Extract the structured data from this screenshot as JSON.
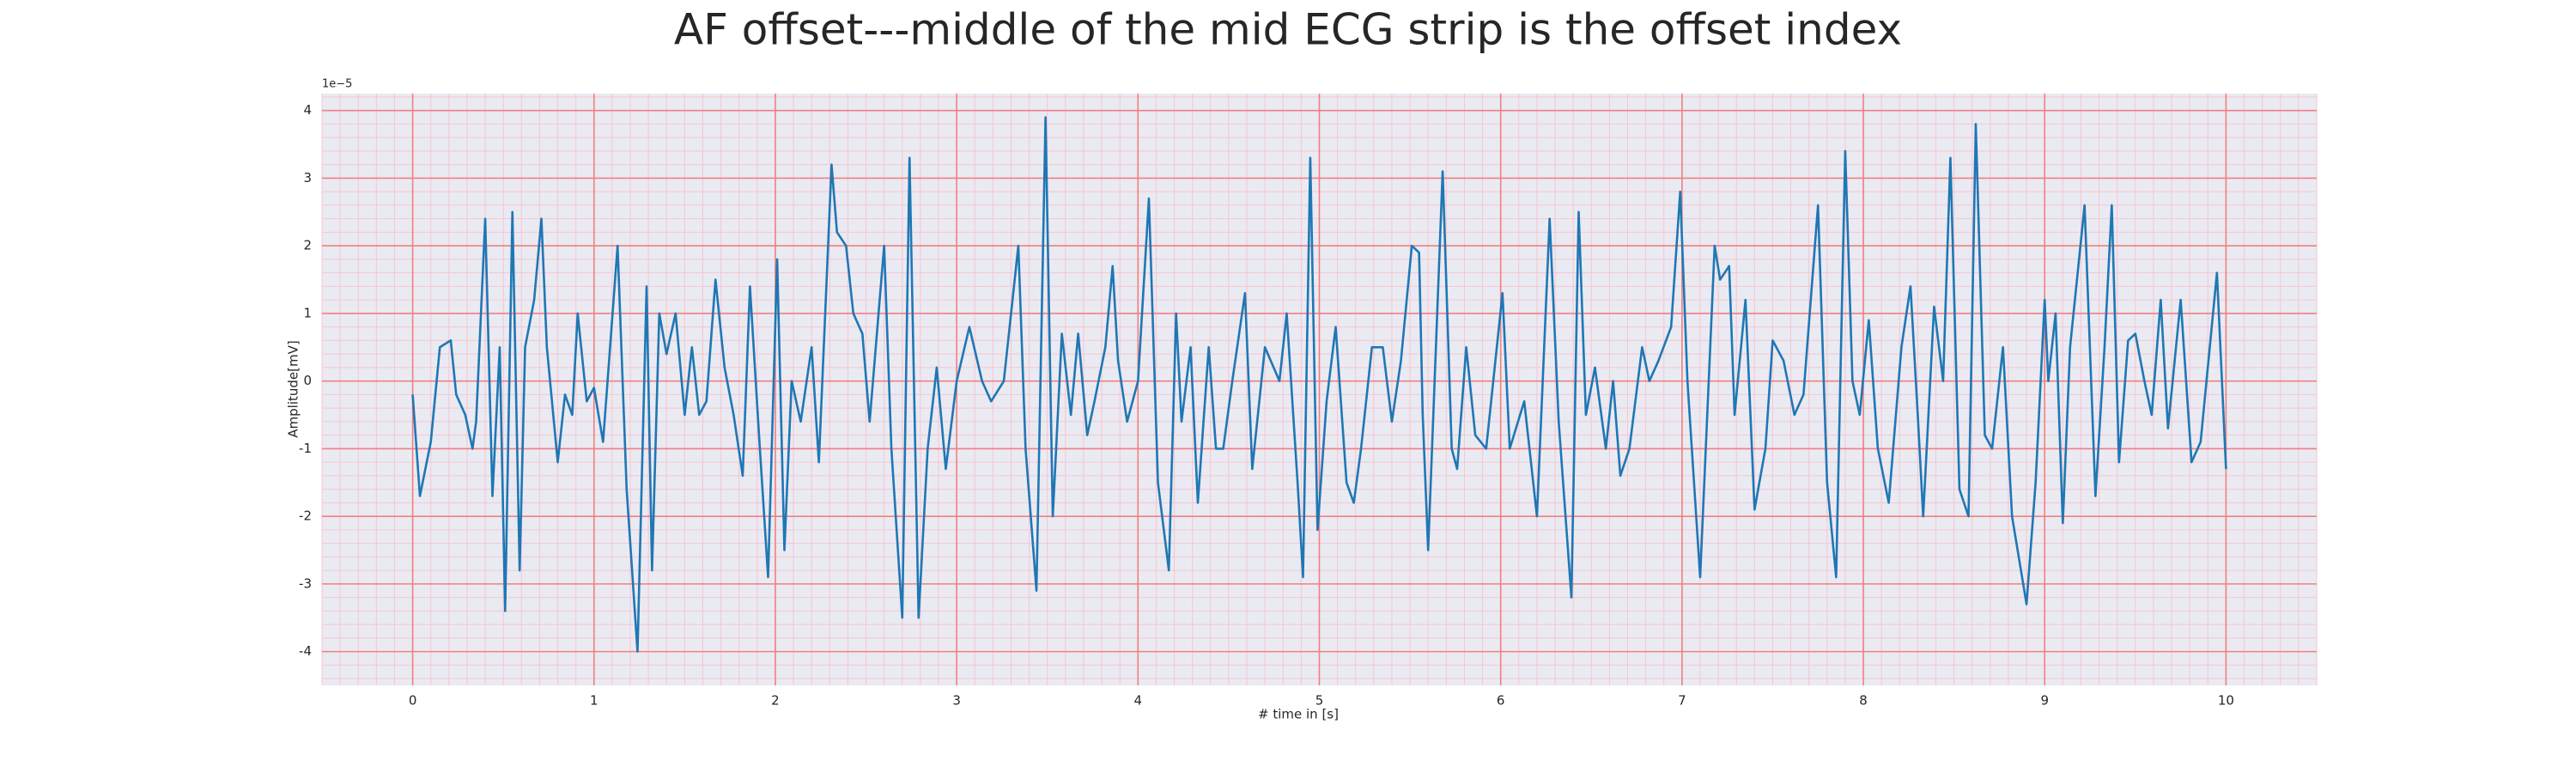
{
  "chart_data": {
    "type": "line",
    "title": "AF offset---middle of the mid ECG strip is the offset index",
    "xlabel": "# time in [s]",
    "ylabel": "Amplitude[mV]",
    "y_offset_label": "1e−5",
    "color": "#1f77b4",
    "grid": true,
    "grid_color": "#f08080",
    "minor_grid_color": "#f5c6d0",
    "background": "#eaeaf2",
    "xlim": [
      -0.5,
      10.5
    ],
    "xticks": [
      0,
      1,
      2,
      3,
      4,
      5,
      6,
      7,
      8,
      9,
      10
    ],
    "ylim": [
      -4.5,
      4.25
    ],
    "yticks": [
      -4,
      -3,
      -2,
      -1,
      0,
      1,
      2,
      3,
      4
    ],
    "x": [
      0,
      0.04,
      0.1,
      0.15,
      0.21,
      0.24,
      0.29,
      0.33,
      0.35,
      0.4,
      0.44,
      0.48,
      0.51,
      0.55,
      0.59,
      0.62,
      0.67,
      0.71,
      0.74,
      0.8,
      0.84,
      0.88,
      0.91,
      0.96,
      1.0,
      1.05,
      1.13,
      1.18,
      1.24,
      1.29,
      1.32,
      1.36,
      1.4,
      1.45,
      1.5,
      1.54,
      1.58,
      1.62,
      1.67,
      1.72,
      1.77,
      1.82,
      1.86,
      1.91,
      1.96,
      2.01,
      2.05,
      2.09,
      2.14,
      2.2,
      2.24,
      2.31,
      2.34,
      2.39,
      2.43,
      2.48,
      2.52,
      2.6,
      2.64,
      2.7,
      2.74,
      2.79,
      2.84,
      2.89,
      2.94,
      3.0,
      3.07,
      3.14,
      3.19,
      3.26,
      3.34,
      3.38,
      3.44,
      3.49,
      3.53,
      3.58,
      3.63,
      3.67,
      3.72,
      3.76,
      3.82,
      3.86,
      3.89,
      3.94,
      4.0,
      4.06,
      4.11,
      4.17,
      4.21,
      4.24,
      4.29,
      4.33,
      4.39,
      4.43,
      4.47,
      4.52,
      4.59,
      4.63,
      4.7,
      4.78,
      4.82,
      4.88,
      4.91,
      4.95,
      4.99,
      5.04,
      5.09,
      5.15,
      5.19,
      5.23,
      5.29,
      5.35,
      5.4,
      5.45,
      5.51,
      5.55,
      5.57,
      5.6,
      5.68,
      5.73,
      5.76,
      5.81,
      5.86,
      5.92,
      6.01,
      6.05,
      6.13,
      6.2,
      6.27,
      6.32,
      6.39,
      6.43,
      6.47,
      6.52,
      6.58,
      6.62,
      6.66,
      6.71,
      6.78,
      6.82,
      6.87,
      6.94,
      6.99,
      7.03,
      7.1,
      7.18,
      7.21,
      7.26,
      7.29,
      7.35,
      7.4,
      7.46,
      7.5,
      7.56,
      7.62,
      7.67,
      7.75,
      7.8,
      7.85,
      7.9,
      7.94,
      7.98,
      8.03,
      8.08,
      8.14,
      8.21,
      8.26,
      8.3,
      8.33,
      8.39,
      8.44,
      8.48,
      8.53,
      8.58,
      8.62,
      8.67,
      8.71,
      8.77,
      8.82,
      8.9,
      8.95,
      9.0,
      9.02,
      9.06,
      9.1,
      9.14,
      9.22,
      9.28,
      9.33,
      9.37,
      9.41,
      9.46,
      9.5,
      9.55,
      9.59,
      9.64,
      9.68,
      9.75,
      9.81,
      9.86,
      9.95,
      10.0
    ],
    "values": [
      -0.2,
      -1.7,
      -0.9,
      0.5,
      0.6,
      -0.2,
      -0.5,
      -1.0,
      -0.6,
      2.4,
      -1.7,
      0.5,
      -3.4,
      2.5,
      -2.8,
      0.5,
      1.2,
      2.4,
      0.5,
      -1.2,
      -0.2,
      -0.5,
      1.0,
      -0.3,
      -0.1,
      -0.9,
      2.0,
      -1.6,
      -4.0,
      1.4,
      -2.8,
      1.0,
      0.4,
      1.0,
      -0.5,
      0.5,
      -0.5,
      -0.3,
      1.5,
      0.2,
      -0.5,
      -1.4,
      1.4,
      -0.8,
      -2.9,
      1.8,
      -2.5,
      0.0,
      -0.6,
      0.5,
      -1.2,
      3.2,
      2.2,
      2.0,
      1.0,
      0.7,
      -0.6,
      2.0,
      -1.0,
      -3.5,
      3.3,
      -3.5,
      -1.0,
      0.2,
      -1.3,
      0.0,
      0.8,
      0.0,
      -0.3,
      0.0,
      2.0,
      -1.0,
      -3.1,
      3.9,
      -2.0,
      0.7,
      -0.5,
      0.7,
      -0.8,
      -0.3,
      0.5,
      1.7,
      0.3,
      -0.6,
      0.0,
      2.7,
      -1.5,
      -2.8,
      1.0,
      -0.6,
      0.5,
      -1.8,
      0.5,
      -1.0,
      -1.0,
      0.0,
      1.3,
      -1.3,
      0.5,
      0.0,
      1.0,
      -1.5,
      -2.9,
      3.3,
      -2.2,
      -0.3,
      0.8,
      -1.5,
      -1.8,
      -1.0,
      0.5,
      0.5,
      -0.6,
      0.3,
      2.0,
      1.9,
      -0.5,
      -2.5,
      3.1,
      -1.0,
      -1.3,
      0.5,
      -0.8,
      -1.0,
      1.3,
      -1.0,
      -0.3,
      -2.0,
      2.4,
      -0.6,
      -3.2,
      2.5,
      -0.5,
      0.2,
      -1.0,
      0.0,
      -1.4,
      -1.0,
      0.5,
      0.0,
      0.3,
      0.8,
      2.8,
      0.0,
      -2.9,
      2.0,
      1.5,
      1.7,
      -0.5,
      1.2,
      -1.9,
      -1.0,
      0.6,
      0.3,
      -0.5,
      -0.2,
      2.6,
      -1.5,
      -2.9,
      3.4,
      0.0,
      -0.5,
      0.9,
      -1.0,
      -1.8,
      0.5,
      1.4,
      -0.5,
      -2.0,
      1.1,
      0.0,
      3.3,
      -1.6,
      -2.0,
      3.8,
      -0.8,
      -1.0,
      0.5,
      -2.0,
      -3.3,
      -1.5,
      1.2,
      0.0,
      1.0,
      -2.1,
      0.5,
      2.6,
      -1.7,
      0.5,
      2.6,
      -1.2,
      0.6,
      0.7,
      0.0,
      -0.5,
      1.2,
      -0.7,
      1.2,
      -1.2,
      -0.9,
      1.6,
      -1.3
    ]
  }
}
